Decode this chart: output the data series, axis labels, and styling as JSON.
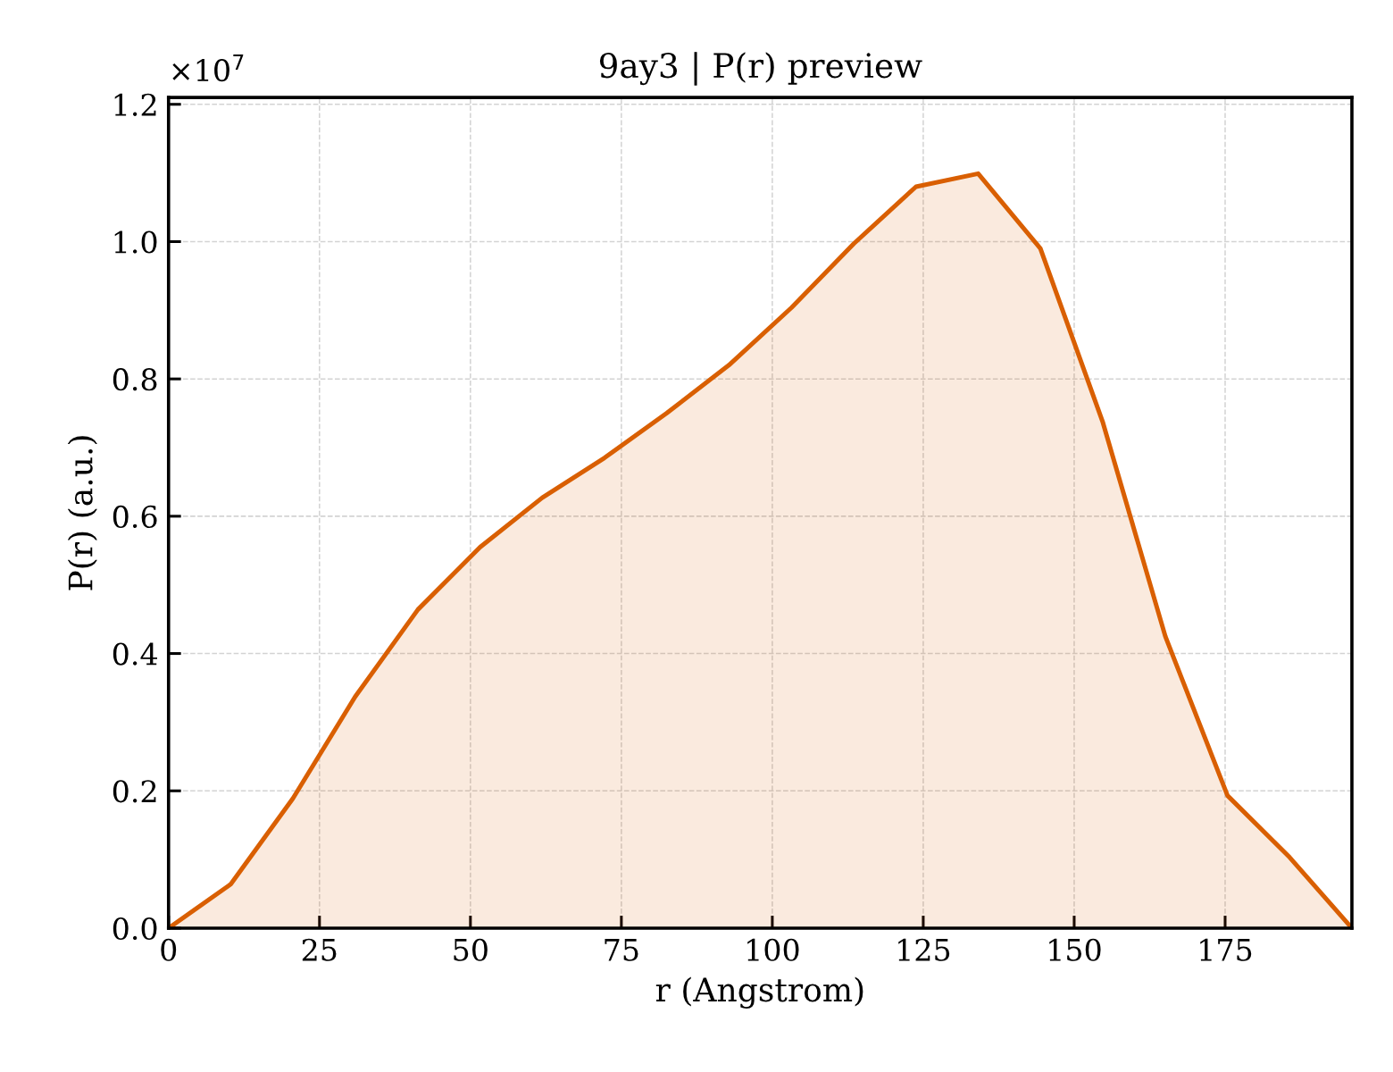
{
  "chart_data": {
    "type": "area",
    "title": "9ay3 | P(r) preview",
    "xlabel": "r (Angstrom)",
    "ylabel": "P(r) (a.u.)",
    "x": [
      0,
      10.3,
      20.6,
      30.9,
      41.3,
      51.6,
      61.9,
      72.2,
      82.5,
      92.8,
      103.2,
      113.5,
      123.8,
      134.1,
      144.4,
      154.7,
      165.1,
      175.4,
      185.7,
      196
    ],
    "series": [
      {
        "color": "#d95f02",
        "values": [
          0,
          0.064,
          0.189,
          0.337,
          0.464,
          0.555,
          0.627,
          0.685,
          0.75,
          0.82,
          0.904,
          0.997,
          1.08,
          1.099,
          0.99,
          0.738,
          0.425,
          0.193,
          0.103,
          0
        ]
      }
    ],
    "xlim": [
      0,
      196
    ],
    "ylim": [
      0,
      1.21
    ],
    "xticks": [
      0,
      25,
      50,
      75,
      100,
      125,
      150,
      175
    ],
    "yticks": [
      {
        "value": 0,
        "label": "0.0"
      },
      0.2,
      0.4,
      0.6,
      0.8,
      {
        "value": 1,
        "label": "1.0"
      },
      1.2
    ],
    "annotations": [
      "×10$^{7}$"
    ],
    "grid": true
  }
}
